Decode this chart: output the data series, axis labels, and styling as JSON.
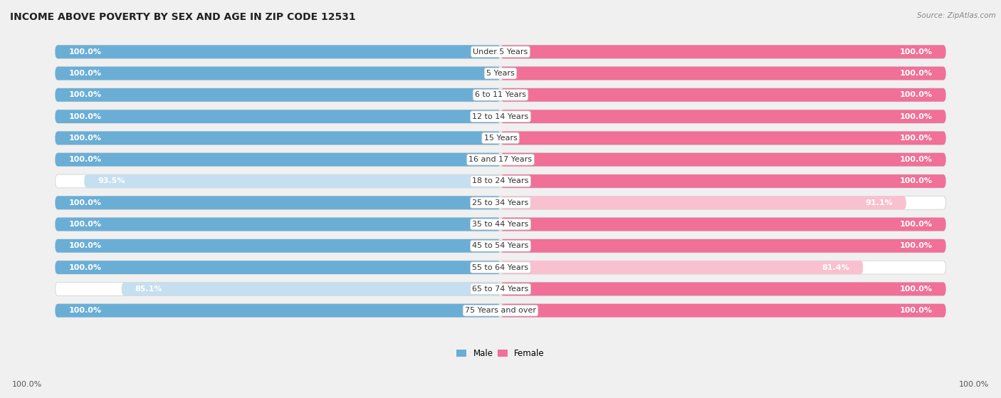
{
  "title": "INCOME ABOVE POVERTY BY SEX AND AGE IN ZIP CODE 12531",
  "source": "Source: ZipAtlas.com",
  "categories": [
    "Under 5 Years",
    "5 Years",
    "6 to 11 Years",
    "12 to 14 Years",
    "15 Years",
    "16 and 17 Years",
    "18 to 24 Years",
    "25 to 34 Years",
    "35 to 44 Years",
    "45 to 54 Years",
    "55 to 64 Years",
    "65 to 74 Years",
    "75 Years and over"
  ],
  "male_values": [
    100.0,
    100.0,
    100.0,
    100.0,
    100.0,
    100.0,
    93.5,
    100.0,
    100.0,
    100.0,
    100.0,
    85.1,
    100.0
  ],
  "female_values": [
    100.0,
    100.0,
    100.0,
    100.0,
    100.0,
    100.0,
    100.0,
    91.1,
    100.0,
    100.0,
    81.4,
    100.0,
    100.0
  ],
  "male_color": "#6aaed6",
  "female_color": "#f07097",
  "male_light_color": "#c5dff0",
  "female_light_color": "#f9c0d0",
  "male_label": "Male",
  "female_label": "Female",
  "bg_color": "#f0f0f0",
  "track_color": "#e0e0e0",
  "max_value": 100.0,
  "title_fontsize": 10,
  "label_fontsize": 8,
  "value_fontsize": 8,
  "axis_label_fontsize": 8
}
